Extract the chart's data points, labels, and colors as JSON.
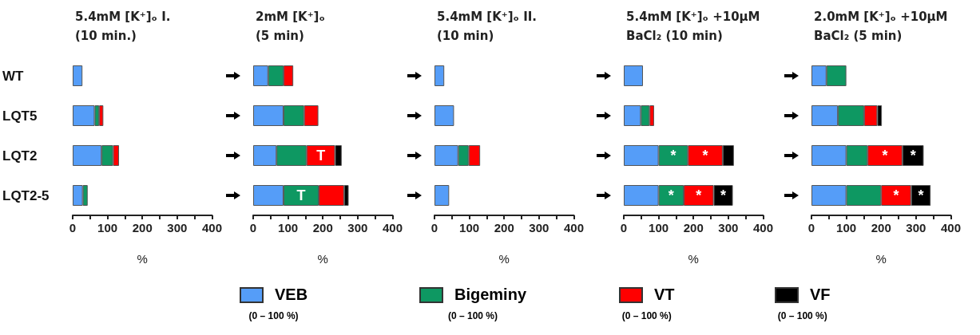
{
  "chart_data": [
    {
      "type": "bar",
      "orientation": "horizontal",
      "stacked": true,
      "title": "5.4mM [K⁺]ₒ I.\n(10 min.)",
      "xlabel": "%",
      "categories": [
        "WT",
        "LQT5",
        "LQT2",
        "LQT2-5"
      ],
      "xlim": [
        0,
        400
      ],
      "xticks": [
        0,
        {
          "value": 50,
          "label": null
        },
        100,
        {
          "value": 150,
          "label": null
        },
        200,
        {
          "value": 250,
          "label": null
        },
        300,
        {
          "value": 350,
          "label": null
        },
        400
      ],
      "legend": "bottom",
      "series": [
        {
          "name": "VEB",
          "color": "#559df8",
          "values": [
            28,
            63,
            83,
            29
          ]
        },
        {
          "name": "Bigeminy",
          "color": "#0e9862",
          "values": [
            null,
            13,
            33,
            14
          ]
        },
        {
          "name": "VT",
          "color": "#ff0000",
          "values": [
            null,
            12,
            17,
            null
          ]
        },
        {
          "name": "VF",
          "color": "#000000",
          "values": [
            null,
            null,
            null,
            null
          ]
        }
      ],
      "annotations": [
        "(0 – 100 %)",
        "(0 – 100 %)",
        "(0 – 100 %)",
        "(0 – 100 %)"
      ]
    },
    {
      "type": "bar",
      "orientation": "horizontal",
      "stacked": true,
      "title": "2mM [K⁺]ₒ\n(5 min)",
      "xlabel": "%",
      "categories": [
        null,
        null,
        null,
        null
      ],
      "tick_labels": "x",
      "xlim": [
        0,
        400
      ],
      "xticks": [
        0,
        {
          "value": 50,
          "label": null
        },
        100,
        {
          "value": 150,
          "label": null
        },
        200,
        {
          "value": 250,
          "label": null
        },
        300,
        {
          "value": 350,
          "label": null
        },
        400
      ],
      "series": [
        {
          "color": "#559df8",
          "values": [
            43,
            87,
            67,
            87
          ]
        },
        {
          "color": "#0e9862",
          "values": [
            44,
            59,
            86,
            101
          ],
          "value_labels": [
            null,
            null,
            null,
            "T"
          ]
        },
        {
          "color": "#ff0000",
          "values": [
            28,
            41,
            82,
            73
          ],
          "value_labels": [
            null,
            null,
            "T",
            null
          ]
        },
        {
          "color": "#000000",
          "values": [
            null,
            null,
            19,
            13
          ]
        }
      ]
    },
    {
      "type": "bar",
      "orientation": "horizontal",
      "stacked": true,
      "title": "5.4mM [K⁺]ₒ II.\n(10 min)",
      "xlabel": "%",
      "categories": [
        null,
        null,
        null,
        null
      ],
      "tick_labels": "x",
      "xlim": [
        0,
        400
      ],
      "xticks": [
        0,
        {
          "value": 50,
          "label": null
        },
        100,
        {
          "value": 150,
          "label": null
        },
        200,
        {
          "value": 250,
          "label": null
        },
        300,
        {
          "value": 350,
          "label": null
        },
        400
      ],
      "series": [
        {
          "color": "#559df8",
          "values": [
            28,
            56,
            68,
            42
          ]
        },
        {
          "color": "#0e9862",
          "values": [
            null,
            null,
            30,
            null
          ]
        },
        {
          "color": "#ff0000",
          "values": [
            null,
            null,
            33,
            null
          ]
        },
        {
          "color": "#000000",
          "values": [
            null,
            null,
            null,
            null
          ]
        }
      ]
    },
    {
      "type": "bar",
      "orientation": "horizontal",
      "stacked": true,
      "title": "5.4mM [K⁺]ₒ +10µM\nBaCl₂ (10 min)",
      "xlabel": "%",
      "categories": [
        null,
        null,
        null,
        null
      ],
      "tick_labels": "x",
      "xlim": [
        0,
        400
      ],
      "xticks": [
        0,
        {
          "value": 50,
          "label": null
        },
        100,
        {
          "value": 150,
          "label": null
        },
        200,
        {
          "value": 250,
          "label": null
        },
        300,
        {
          "value": 350,
          "label": null
        },
        400
      ],
      "series": [
        {
          "color": "#559df8",
          "values": [
            55,
            49,
            100,
            100
          ]
        },
        {
          "color": "#0e9862",
          "values": [
            null,
            25,
            84,
            72
          ],
          "value_labels": [
            null,
            null,
            "*",
            "*"
          ]
        },
        {
          "color": "#ff0000",
          "values": [
            null,
            13,
            100,
            86
          ],
          "value_labels": [
            null,
            null,
            "*",
            "*"
          ]
        },
        {
          "color": "#000000",
          "values": [
            null,
            null,
            32,
            55
          ],
          "value_labels": [
            null,
            null,
            null,
            "*"
          ]
        }
      ]
    },
    {
      "type": "bar",
      "orientation": "horizontal",
      "stacked": true,
      "title": "2.0mM [K⁺]ₒ +10µM\nBaCl₂ (5 min)",
      "xlabel": "%",
      "categories": [
        null,
        null,
        null,
        null
      ],
      "tick_labels": "x",
      "xlim": [
        0,
        400
      ],
      "xticks": [
        0,
        {
          "value": 50,
          "label": null
        },
        100,
        {
          "value": 150,
          "label": null
        },
        200,
        {
          "value": 250,
          "label": null
        },
        300,
        {
          "value": 350,
          "label": null
        },
        400
      ],
      "series": [
        {
          "color": "#559df8",
          "values": [
            43,
            76,
            100,
            100
          ]
        },
        {
          "color": "#0e9862",
          "values": [
            57,
            75,
            61,
            100
          ]
        },
        {
          "color": "#ff0000",
          "values": [
            null,
            38,
            100,
            86
          ],
          "value_labels": [
            null,
            null,
            "*",
            "*"
          ]
        },
        {
          "color": "#000000",
          "values": [
            null,
            13,
            61,
            56
          ],
          "value_labels": [
            null,
            null,
            "*",
            "*"
          ]
        }
      ]
    }
  ]
}
